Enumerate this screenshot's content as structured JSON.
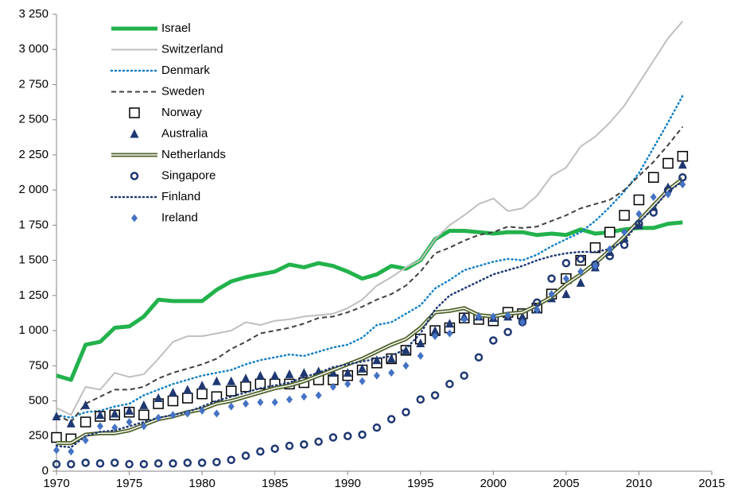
{
  "chart_data": {
    "type": "line",
    "x": [
      1970,
      1971,
      1972,
      1973,
      1974,
      1975,
      1976,
      1977,
      1978,
      1979,
      1980,
      1981,
      1982,
      1983,
      1984,
      1985,
      1986,
      1987,
      1988,
      1989,
      1990,
      1991,
      1992,
      1993,
      1994,
      1995,
      1996,
      1997,
      1998,
      1999,
      2000,
      2001,
      2002,
      2003,
      2004,
      2005,
      2006,
      2007,
      2008,
      2009,
      2010,
      2011,
      2012,
      2013
    ],
    "xlim": [
      1970,
      2015
    ],
    "xticks": [
      1970,
      1975,
      1980,
      1985,
      1990,
      1995,
      2000,
      2005,
      2010,
      2015
    ],
    "ylim": [
      0,
      3250
    ],
    "yticks": [
      0,
      250,
      500,
      750,
      {
        "value": 1000,
        "label": "1 000"
      },
      {
        "value": 1250,
        "label": "1 250"
      },
      {
        "value": 1500,
        "label": "1 500"
      },
      {
        "value": 1750,
        "label": "1 750"
      },
      {
        "value": 2000,
        "label": "2 000"
      },
      {
        "value": 2250,
        "label": "2 250"
      },
      {
        "value": 2500,
        "label": "2 500"
      },
      {
        "value": 2750,
        "label": "2 750"
      },
      {
        "value": 3000,
        "label": "3 000"
      },
      {
        "value": 3250,
        "label": "3 250"
      }
    ],
    "legend": "top-left",
    "series": [
      {
        "name": "Israel",
        "color": "#22b24c",
        "line": "thick",
        "values": [
          680,
          650,
          900,
          920,
          1020,
          1030,
          1100,
          1220,
          1210,
          1210,
          1210,
          1290,
          1350,
          1380,
          1400,
          1420,
          1470,
          1450,
          1480,
          1460,
          1420,
          1370,
          1400,
          1460,
          1440,
          1500,
          1650,
          1710,
          1710,
          1700,
          1690,
          1700,
          1700,
          1680,
          1690,
          1680,
          1720,
          1690,
          1700,
          1720,
          1730,
          1730,
          1760,
          1770
        ]
      },
      {
        "name": "Switzerland",
        "color": "#bfbfbf",
        "line": "solid",
        "values": [
          450,
          400,
          600,
          580,
          700,
          670,
          690,
          800,
          920,
          960,
          960,
          980,
          1000,
          1060,
          1040,
          1070,
          1080,
          1100,
          1110,
          1120,
          1160,
          1220,
          1320,
          1380,
          1450,
          1500,
          1650,
          1750,
          1820,
          1900,
          1940,
          1850,
          1870,
          1960,
          2100,
          2160,
          2310,
          2380,
          2480,
          2600,
          2760,
          2920,
          3080,
          3200
        ]
      },
      {
        "name": "Denmark",
        "color": "#1580c6",
        "line": "dotted",
        "values": [
          400,
          380,
          420,
          430,
          460,
          480,
          540,
          580,
          620,
          650,
          680,
          700,
          720,
          760,
          790,
          810,
          830,
          820,
          850,
          880,
          900,
          950,
          1040,
          1060,
          1120,
          1180,
          1300,
          1360,
          1430,
          1460,
          1490,
          1510,
          1500,
          1540,
          1600,
          1650,
          1700,
          1780,
          1880,
          1990,
          2120,
          2300,
          2480,
          2670
        ]
      },
      {
        "name": "Sweden",
        "color": "#404040",
        "line": "dashed",
        "values": [
          400,
          350,
          480,
          530,
          580,
          580,
          600,
          660,
          700,
          730,
          760,
          800,
          870,
          920,
          980,
          1000,
          1020,
          1050,
          1090,
          1100,
          1130,
          1170,
          1220,
          1260,
          1320,
          1420,
          1550,
          1590,
          1640,
          1680,
          1700,
          1740,
          1730,
          1740,
          1780,
          1820,
          1870,
          1900,
          1930,
          2000,
          2100,
          2200,
          2320,
          2450
        ]
      },
      {
        "name": "Norway",
        "color": "#000000",
        "marker": "square",
        "values": [
          240,
          230,
          350,
          390,
          400,
          420,
          400,
          480,
          500,
          520,
          550,
          530,
          570,
          600,
          620,
          620,
          620,
          630,
          650,
          650,
          680,
          720,
          770,
          800,
          860,
          940,
          1000,
          1020,
          1090,
          1080,
          1070,
          1130,
          1120,
          1160,
          1260,
          1370,
          1500,
          1590,
          1700,
          1820,
          1930,
          2090,
          2190,
          2240
        ]
      },
      {
        "name": "Australia",
        "color": "#1f3872",
        "marker": "triangle",
        "values": [
          390,
          340,
          470,
          400,
          410,
          430,
          470,
          520,
          560,
          580,
          610,
          640,
          640,
          660,
          680,
          680,
          690,
          700,
          710,
          700,
          700,
          730,
          790,
          800,
          860,
          910,
          1000,
          1050,
          1100,
          1100,
          1090,
          1100,
          1100,
          1150,
          1230,
          1260,
          1340,
          1450,
          1560,
          1660,
          1750,
          1880,
          2020,
          2180
        ]
      },
      {
        "name": "Netherlands",
        "color": "#4f6228",
        "line": "double",
        "values": [
          200,
          200,
          260,
          270,
          270,
          290,
          330,
          370,
          390,
          420,
          440,
          480,
          500,
          530,
          560,
          590,
          610,
          640,
          680,
          720,
          760,
          800,
          850,
          900,
          940,
          1020,
          1130,
          1140,
          1160,
          1110,
          1100,
          1120,
          1130,
          1180,
          1240,
          1330,
          1400,
          1480,
          1570,
          1670,
          1780,
          1890,
          2000,
          2080
        ]
      },
      {
        "name": "Singapore",
        "color": "#1f3872",
        "marker": "circle",
        "values": [
          50,
          50,
          60,
          55,
          60,
          50,
          50,
          55,
          55,
          60,
          60,
          65,
          80,
          110,
          140,
          160,
          180,
          190,
          210,
          240,
          250,
          260,
          310,
          370,
          420,
          510,
          540,
          620,
          680,
          810,
          930,
          990,
          1060,
          1200,
          1370,
          1480,
          1510,
          1470,
          1530,
          1610,
          1760,
          1840,
          2000,
          2090
        ]
      },
      {
        "name": "Finland",
        "color": "#1f3872",
        "line": "dotted",
        "values": [
          180,
          170,
          250,
          280,
          290,
          320,
          350,
          380,
          400,
          420,
          460,
          500,
          530,
          560,
          590,
          610,
          630,
          670,
          700,
          740,
          760,
          780,
          800,
          820,
          870,
          980,
          1150,
          1250,
          1300,
          1350,
          1400,
          1430,
          1460,
          1500,
          1530,
          1550,
          1560,
          1560,
          1580,
          1640,
          1770,
          1870,
          1990,
          2060
        ]
      },
      {
        "name": "Ireland",
        "color": "#4472c4",
        "marker": "diamond",
        "values": [
          150,
          140,
          220,
          320,
          310,
          350,
          320,
          380,
          400,
          410,
          430,
          410,
          460,
          480,
          490,
          490,
          510,
          530,
          540,
          600,
          620,
          640,
          680,
          700,
          750,
          820,
          960,
          980,
          1080,
          1100,
          1100,
          1110,
          1060,
          1150,
          1260,
          1370,
          1420,
          1460,
          1580,
          1700,
          1830,
          1950,
          1970,
          2040
        ]
      }
    ]
  }
}
